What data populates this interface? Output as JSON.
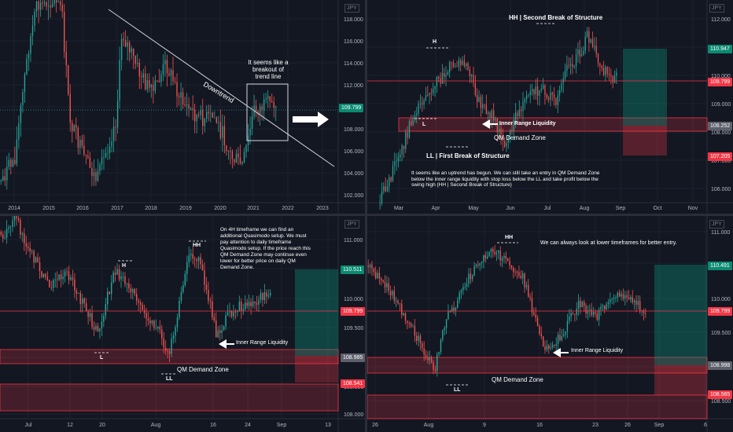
{
  "currency": "JPY",
  "chart_data": [
    {
      "type": "candlestick",
      "panel": "top-left",
      "timeframe": "weekly",
      "x_ticks": [
        "2014",
        "2015",
        "2016",
        "2017",
        "2018",
        "2019",
        "2020",
        "2021",
        "2022",
        "2023"
      ],
      "y_ticks": [
        "118.000",
        "116.000",
        "114.000",
        "112.000",
        "110.000",
        "108.000",
        "106.000",
        "104.000",
        "102.000"
      ],
      "ylim": [
        101.5,
        119.3
      ],
      "last_price": "109.799",
      "annotations": {
        "trend_label": "Downtrend",
        "note": "It seems like a breakout of trend line"
      }
    },
    {
      "type": "candlestick",
      "panel": "top-right",
      "timeframe": "daily",
      "x_ticks": [
        "Mar",
        "Apr",
        "May",
        "Jun",
        "Jul",
        "Aug",
        "Sep",
        "Oct",
        "Nov"
      ],
      "y_ticks": [
        "112.000",
        "111.000",
        "110.000",
        "109.000",
        "108.000",
        "107.000",
        "106.000"
      ],
      "ylim": [
        105.6,
        112.6
      ],
      "price_tags": [
        "110.947",
        "109.799",
        "108.252",
        "107.205"
      ],
      "annotations": {
        "hh": "HH | Second Break of Structure",
        "h": "H",
        "l": "L",
        "ll": "LL | First Break of Structure",
        "inner_range": "Inner Range Liquidity",
        "qm_zone": "QM Demand Zone",
        "note": "It seems like an uptrend has begun. We can still take an entry in QM Demand Zone below the inner range liquidity with stop loss below the LL and take profit below the swing high (HH | Second Break of Structure)"
      }
    },
    {
      "type": "candlestick",
      "panel": "bottom-left",
      "timeframe": "4H",
      "x_ticks": [
        "Jul",
        "12",
        "20",
        "Aug",
        "16",
        "24",
        "Sep",
        "13"
      ],
      "y_ticks": [
        "111.000",
        "110.500",
        "110.000",
        "109.500",
        "109.000",
        "108.500",
        "108.000"
      ],
      "ylim": [
        107.95,
        111.1
      ],
      "price_tags": [
        "110.511",
        "109.799",
        "108.985",
        "108.541"
      ],
      "annotations": {
        "h": "H",
        "hh": "HH",
        "l": "L",
        "ll": "LL",
        "inner_range": "Inner Range Liquidity",
        "qm_zone": "QM Demand Zone",
        "note": "On 4H timeframe we can find an additional Quasimodo setup. We must pay attention to daily timeframe Quasimodo setup. If the price reach this QM Demand Zone may continue even lower for better price on daily QM Demand Zone."
      }
    },
    {
      "type": "candlestick",
      "panel": "bottom-right",
      "timeframe": "lower",
      "x_ticks": [
        "26",
        "Aug",
        "9",
        "16",
        "23",
        "26",
        "Sep",
        "6"
      ],
      "y_ticks": [
        "111.000",
        "110.500",
        "110.000",
        "109.500",
        "109.000",
        "108.500"
      ],
      "ylim": [
        108.4,
        111.15
      ],
      "price_tags": [
        "110.491",
        "109.799",
        "108.998",
        "108.565"
      ],
      "annotations": {
        "hh": "HH",
        "ll": "LL",
        "inner_range": "Inner Range Liquidity",
        "qm_zone": "QM Demand Zone",
        "note": "We can always look at lower timeframes for better entry."
      }
    }
  ],
  "colors": {
    "up": "#26a69a",
    "down": "#ef5350",
    "tag_green": "#0b8a72",
    "tag_red": "#f23645",
    "bg": "#131722"
  }
}
